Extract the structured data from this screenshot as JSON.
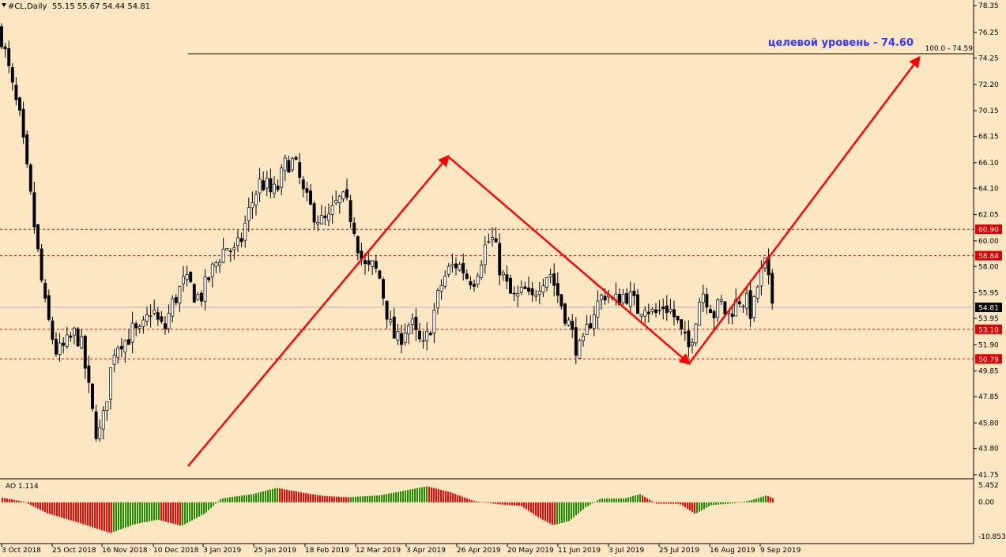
{
  "header": {
    "symbol": "#CL,Daily",
    "ohlc": "55.15 55.67 54.44 54.81"
  },
  "annotation": {
    "text": "целевой уровень - 74.60",
    "fib_label": "100.0 - 74.59"
  },
  "oscillator": {
    "label": "AO 1.114",
    "axis_labels": [
      "5.452",
      "0.00",
      "-10.853"
    ]
  },
  "colors": {
    "background": "#fde6c2",
    "bull": "#1b8f00",
    "bear": "#ff0000",
    "arrow": "#ff0000",
    "annotation": "#3636ff"
  },
  "chart_data": {
    "type": "candlestick",
    "y_axis_labels": [
      "78.35",
      "76.25",
      "74.25",
      "72.20",
      "70.15",
      "68.15",
      "66.10",
      "64.10",
      "62.05",
      "60.00",
      "58.00",
      "55.95",
      "53.95",
      "51.90",
      "49.85",
      "47.85",
      "45.80",
      "43.80",
      "41.75"
    ],
    "ylim": [
      41.75,
      78.35
    ],
    "x_axis_labels": [
      "3 Oct 2018",
      "25 Oct 2018",
      "16 Nov 2018",
      "10 Dec 2018",
      "3 Jan 2019",
      "25 Jan 2019",
      "18 Feb 2019",
      "12 Mar 2019",
      "3 Apr 2019",
      "26 Apr 2019",
      "20 May 2019",
      "11 Jun 2019",
      "3 Jul 2019",
      "25 Jul 2019",
      "16 Aug 2019",
      "9 Sep 2019"
    ],
    "current_price": "54.81",
    "levels": [
      {
        "price": 60.9,
        "label": "60.90"
      },
      {
        "price": 58.84,
        "label": "58.84"
      },
      {
        "price": 53.1,
        "label": "53.10"
      },
      {
        "price": 50.79,
        "label": "50.79"
      }
    ],
    "target_level": 74.59,
    "zigzag_points": [
      {
        "date": "24 Dec 2018",
        "price": 42.9
      },
      {
        "date": "24 Apr 2019",
        "price": 66.7
      },
      {
        "date": "5 Aug 2019",
        "price": 50.5
      },
      {
        "date": "target",
        "price": 73.8
      }
    ],
    "anchor_closes": [
      [
        0,
        76.5
      ],
      [
        8,
        74.2
      ],
      [
        16,
        71.8
      ],
      [
        25,
        69.5
      ],
      [
        32,
        66.3
      ],
      [
        40,
        62.8
      ],
      [
        48,
        59.0
      ],
      [
        56,
        55.2
      ],
      [
        64,
        53.0
      ],
      [
        72,
        51.2
      ],
      [
        80,
        51.6
      ],
      [
        88,
        52.2
      ],
      [
        96,
        52.9
      ],
      [
        104,
        51.6
      ],
      [
        112,
        48.5
      ],
      [
        120,
        45.3
      ],
      [
        128,
        45.0
      ],
      [
        136,
        48.3
      ],
      [
        144,
        51.5
      ],
      [
        152,
        52.3
      ],
      [
        160,
        52.2
      ],
      [
        168,
        53.0
      ],
      [
        176,
        52.6
      ],
      [
        184,
        53.5
      ],
      [
        192,
        54.9
      ],
      [
        200,
        53.6
      ],
      [
        208,
        53.0
      ],
      [
        216,
        54.8
      ],
      [
        224,
        55.8
      ],
      [
        232,
        56.7
      ],
      [
        240,
        56.6
      ],
      [
        248,
        55.6
      ],
      [
        256,
        55.8
      ],
      [
        264,
        57.1
      ],
      [
        272,
        58.1
      ],
      [
        280,
        59.1
      ],
      [
        288,
        59.6
      ],
      [
        296,
        59.0
      ],
      [
        304,
        59.8
      ],
      [
        312,
        61.7
      ],
      [
        320,
        63.2
      ],
      [
        328,
        64.5
      ],
      [
        336,
        64.4
      ],
      [
        344,
        63.6
      ],
      [
        352,
        64.2
      ],
      [
        360,
        65.8
      ],
      [
        368,
        66.3
      ],
      [
        376,
        65.5
      ],
      [
        384,
        63.6
      ],
      [
        392,
        62.6
      ],
      [
        400,
        62.0
      ],
      [
        408,
        61.4
      ],
      [
        416,
        61.6
      ],
      [
        424,
        62.7
      ],
      [
        432,
        63.3
      ],
      [
        440,
        62.6
      ],
      [
        448,
        61.2
      ],
      [
        456,
        58.8
      ],
      [
        464,
        57.6
      ],
      [
        472,
        58.0
      ],
      [
        480,
        57.2
      ],
      [
        488,
        54.9
      ],
      [
        496,
        52.8
      ],
      [
        504,
        52.1
      ],
      [
        512,
        53.2
      ],
      [
        520,
        53.6
      ],
      [
        528,
        52.3
      ],
      [
        536,
        51.6
      ],
      [
        544,
        53.2
      ],
      [
        552,
        55.1
      ],
      [
        560,
        56.9
      ],
      [
        568,
        57.7
      ],
      [
        576,
        58.2
      ],
      [
        584,
        58.0
      ],
      [
        592,
        57.1
      ],
      [
        600,
        57.1
      ],
      [
        608,
        58.5
      ],
      [
        616,
        59.9
      ],
      [
        624,
        60.1
      ],
      [
        632,
        58.0
      ],
      [
        640,
        56.6
      ],
      [
        648,
        55.5
      ],
      [
        656,
        55.6
      ],
      [
        664,
        56.1
      ],
      [
        672,
        55.1
      ],
      [
        680,
        56.6
      ],
      [
        688,
        57.2
      ],
      [
        696,
        57.6
      ],
      [
        704,
        56.1
      ],
      [
        712,
        54.8
      ],
      [
        720,
        53.5
      ],
      [
        728,
        51.9
      ],
      [
        736,
        51.3
      ],
      [
        744,
        53.3
      ],
      [
        752,
        54.6
      ],
      [
        760,
        55.5
      ],
      [
        768,
        56.1
      ],
      [
        776,
        55.1
      ],
      [
        784,
        55.6
      ],
      [
        792,
        55.9
      ],
      [
        800,
        55.3
      ],
      [
        808,
        54.6
      ],
      [
        816,
        55.2
      ],
      [
        824,
        54.4
      ],
      [
        832,
        54.3
      ],
      [
        840,
        55.0
      ],
      [
        848,
        54.6
      ],
      [
        856,
        53.8
      ],
      [
        864,
        52.4
      ],
      [
        872,
        51.6
      ],
      [
        880,
        54.0
      ],
      [
        888,
        56.2
      ],
      [
        896,
        55.4
      ],
      [
        904,
        54.3
      ],
      [
        912,
        55.2
      ],
      [
        920,
        54.1
      ],
      [
        928,
        54.9
      ],
      [
        936,
        55.5
      ],
      [
        944,
        55.3
      ],
      [
        952,
        54.2
      ],
      [
        960,
        56.9
      ],
      [
        968,
        58.1
      ],
      [
        976,
        55.5
      ],
      [
        980,
        54.8
      ]
    ],
    "ao_anchors": [
      [
        0,
        1.6
      ],
      [
        30,
        0.2
      ],
      [
        60,
        -3.5
      ],
      [
        100,
        -6.5
      ],
      [
        140,
        -9.8
      ],
      [
        170,
        -7.0
      ],
      [
        200,
        -5.5
      ],
      [
        230,
        -7.5
      ],
      [
        260,
        -3.5
      ],
      [
        280,
        1.2
      ],
      [
        320,
        2.6
      ],
      [
        350,
        4.6
      ],
      [
        380,
        3.2
      ],
      [
        410,
        2.0
      ],
      [
        440,
        1.6
      ],
      [
        480,
        2.2
      ],
      [
        510,
        3.6
      ],
      [
        540,
        5.1
      ],
      [
        570,
        3.2
      ],
      [
        600,
        0.4
      ],
      [
        630,
        -0.6
      ],
      [
        660,
        -1.2
      ],
      [
        680,
        -4.6
      ],
      [
        700,
        -7.3
      ],
      [
        720,
        -6.0
      ],
      [
        740,
        -1.8
      ],
      [
        760,
        1.2
      ],
      [
        790,
        1.2
      ],
      [
        810,
        2.6
      ],
      [
        830,
        -0.4
      ],
      [
        860,
        -0.5
      ],
      [
        880,
        -3.7
      ],
      [
        900,
        -0.9
      ],
      [
        930,
        -0.3
      ],
      [
        950,
        0.6
      ],
      [
        970,
        2.2
      ],
      [
        980,
        1.1
      ]
    ]
  }
}
